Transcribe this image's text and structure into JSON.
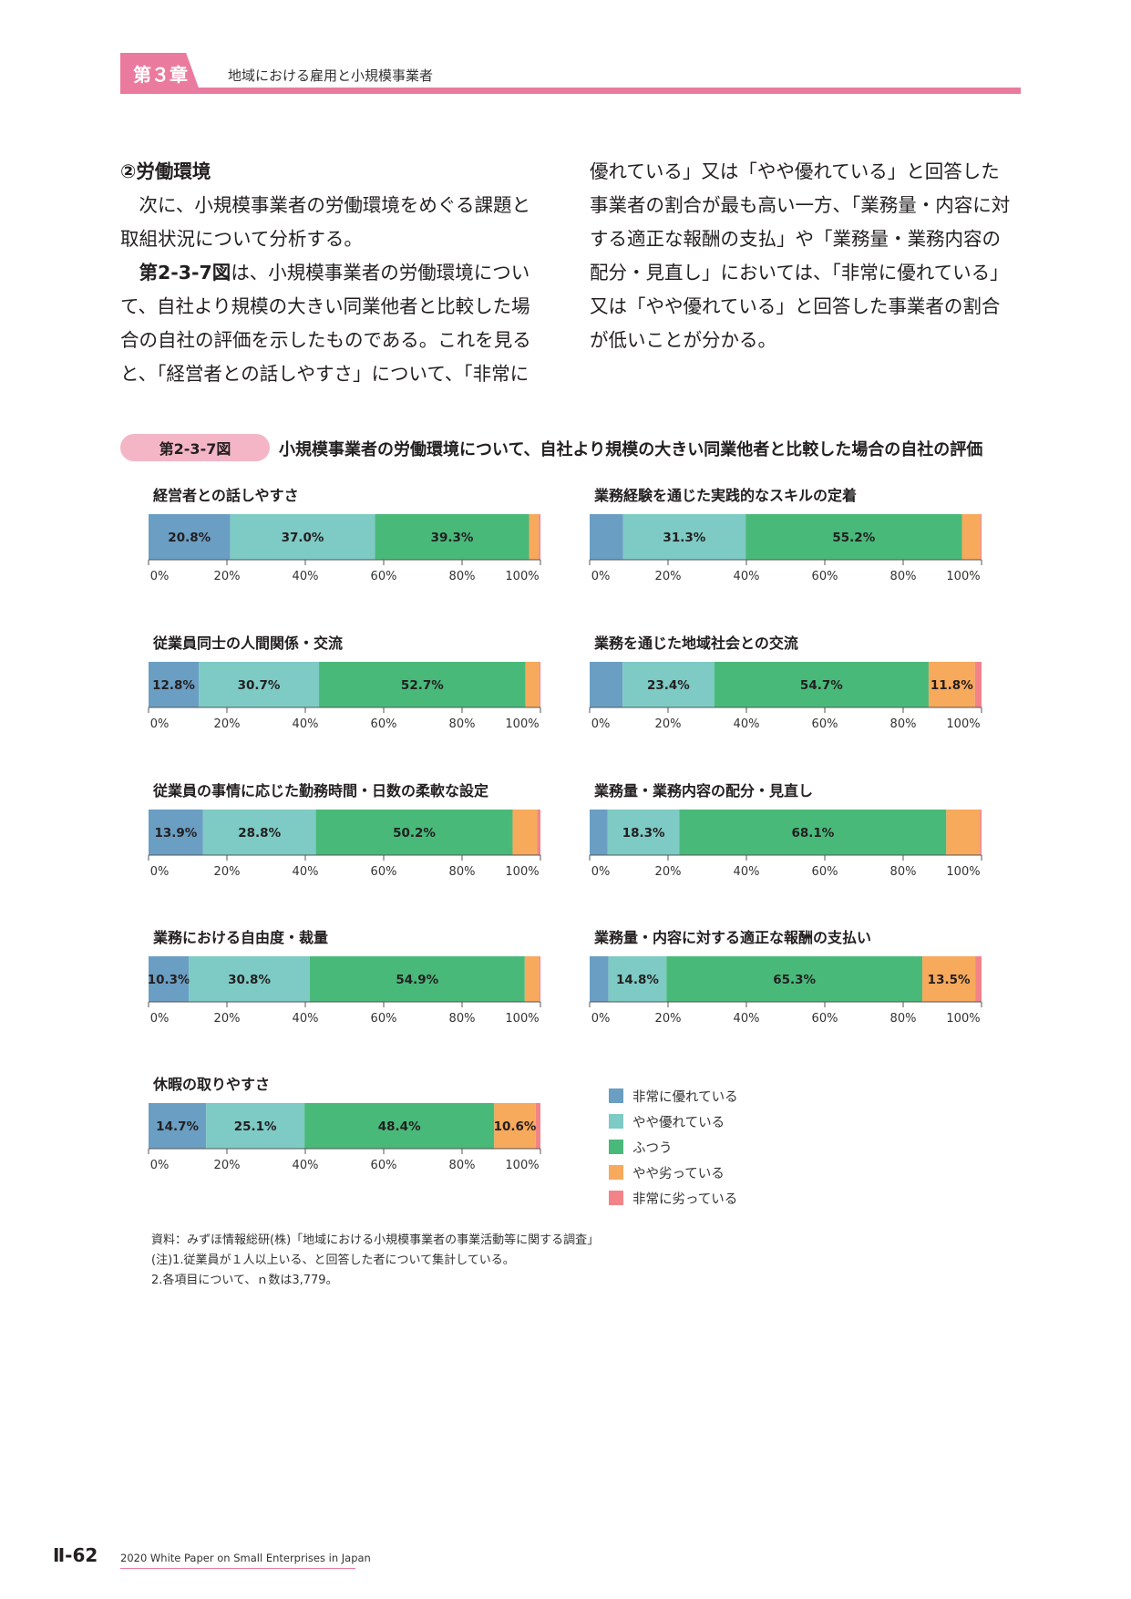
{
  "header": {
    "chapter_label": "第３章",
    "chapter_title": "地域における雇用と小規模事業者"
  },
  "body": {
    "left": {
      "heading": "②労働環境",
      "para1": "次に、小規模事業者の労働環境をめぐる課題と取組状況について分析する。",
      "para2_ref": "第2-3-7図",
      "para2": "は、小規模事業者の労働環境について、自社より規模の大きい同業他者と比較した場合の自社の評価を示したものである。これを見ると、「経営者との話しやすさ」について、「非常に"
    },
    "right": {
      "para": "優れている」又は「やや優れている」と回答した事業者の割合が最も高い一方、「業務量・内容に対する適正な報酬の支払」や「業務量・業務内容の配分・見直し」においては、「非常に優れている」又は「やや優れている」と回答した事業者の割合が低いことが分かる。"
    }
  },
  "figure": {
    "label": "第2-3-7図",
    "title": "小規模事業者の労働環境について、自社より規模の大きい同業他者と比較した場合の自社の評価"
  },
  "colors": [
    "#6a9ec3",
    "#7ecac4",
    "#49b97a",
    "#f7a95c",
    "#f28389"
  ],
  "chart_data": [
    {
      "type": "bar",
      "orientation": "horizontal",
      "stacked": true,
      "title": "経営者との話しやすさ",
      "values": [
        20.8,
        37.0,
        39.3,
        2.5,
        0.4
      ],
      "labels": [
        "20.8%",
        "37.0%",
        "39.3%",
        "",
        ""
      ],
      "xlim": [
        0,
        100
      ],
      "xticks": [
        "0%",
        "20%",
        "40%",
        "60%",
        "80%",
        "100%"
      ]
    },
    {
      "type": "bar",
      "orientation": "horizontal",
      "stacked": true,
      "title": "業務経験を通じた実践的なスキルの定着",
      "values": [
        8.5,
        31.3,
        55.2,
        4.7,
        0.3
      ],
      "labels": [
        "",
        "31.3%",
        "55.2%",
        "",
        ""
      ],
      "xlim": [
        0,
        100
      ],
      "xticks": [
        "0%",
        "20%",
        "40%",
        "60%",
        "80%",
        "100%"
      ]
    },
    {
      "type": "bar",
      "orientation": "horizontal",
      "stacked": true,
      "title": "従業員同士の人間関係・交流",
      "values": [
        12.8,
        30.7,
        52.7,
        3.5,
        0.3
      ],
      "labels": [
        "12.8%",
        "30.7%",
        "52.7%",
        "",
        ""
      ],
      "xlim": [
        0,
        100
      ],
      "xticks": [
        "0%",
        "20%",
        "40%",
        "60%",
        "80%",
        "100%"
      ]
    },
    {
      "type": "bar",
      "orientation": "horizontal",
      "stacked": true,
      "title": "業務を通じた地域社会との交流",
      "values": [
        8.4,
        23.4,
        54.7,
        11.8,
        1.7
      ],
      "labels": [
        "",
        "23.4%",
        "54.7%",
        "11.8%",
        ""
      ],
      "xlim": [
        0,
        100
      ],
      "xticks": [
        "0%",
        "20%",
        "40%",
        "60%",
        "80%",
        "100%"
      ]
    },
    {
      "type": "bar",
      "orientation": "horizontal",
      "stacked": true,
      "title": "従業員の事情に応じた勤務時間・日数の柔軟な設定",
      "values": [
        13.9,
        28.8,
        50.2,
        6.3,
        0.8
      ],
      "labels": [
        "13.9%",
        "28.8%",
        "50.2%",
        "",
        ""
      ],
      "xlim": [
        0,
        100
      ],
      "xticks": [
        "0%",
        "20%",
        "40%",
        "60%",
        "80%",
        "100%"
      ]
    },
    {
      "type": "bar",
      "orientation": "horizontal",
      "stacked": true,
      "title": "業務量・業務内容の配分・見直し",
      "values": [
        4.6,
        18.3,
        68.1,
        8.6,
        0.4
      ],
      "labels": [
        "",
        "18.3%",
        "68.1%",
        "",
        ""
      ],
      "xlim": [
        0,
        100
      ],
      "xticks": [
        "0%",
        "20%",
        "40%",
        "60%",
        "80%",
        "100%"
      ]
    },
    {
      "type": "bar",
      "orientation": "horizontal",
      "stacked": true,
      "title": "業務における自由度・裁量",
      "values": [
        10.3,
        30.8,
        54.9,
        3.7,
        0.3
      ],
      "labels": [
        "10.3%",
        "30.8%",
        "54.9%",
        "",
        ""
      ],
      "xlim": [
        0,
        100
      ],
      "xticks": [
        "0%",
        "20%",
        "40%",
        "60%",
        "80%",
        "100%"
      ]
    },
    {
      "type": "bar",
      "orientation": "horizontal",
      "stacked": true,
      "title": "業務量・内容に対する適正な報酬の支払い",
      "values": [
        4.8,
        14.8,
        65.3,
        13.5,
        1.6
      ],
      "labels": [
        "",
        "14.8%",
        "65.3%",
        "13.5%",
        ""
      ],
      "xlim": [
        0,
        100
      ],
      "xticks": [
        "0%",
        "20%",
        "40%",
        "60%",
        "80%",
        "100%"
      ]
    },
    {
      "type": "bar",
      "orientation": "horizontal",
      "stacked": true,
      "title": "休暇の取りやすさ",
      "values": [
        14.7,
        25.1,
        48.4,
        10.6,
        1.2
      ],
      "labels": [
        "14.7%",
        "25.1%",
        "48.4%",
        "10.6%",
        ""
      ],
      "xlim": [
        0,
        100
      ],
      "xticks": [
        "0%",
        "20%",
        "40%",
        "60%",
        "80%",
        "100%"
      ]
    }
  ],
  "legend": [
    "非常に優れている",
    "やや優れている",
    "ふつう",
    "やや劣っている",
    "非常に劣っている"
  ],
  "notes": {
    "source": "資料：みずほ情報総研(株)「地域における小規模事業者の事業活動等に関する調査」",
    "note1": "(注)1.従業員が１人以上いる、と回答した者について集計している。",
    "note2": "2.各項目について、ｎ数は3,779。"
  },
  "footer": {
    "page": "Ⅱ-62",
    "text": "2020 White Paper on Small Enterprises in Japan"
  }
}
